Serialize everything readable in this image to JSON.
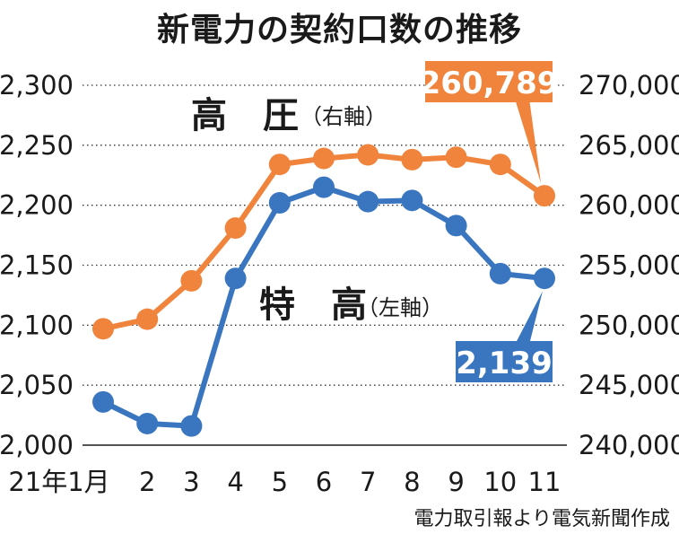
{
  "chart_data": {
    "type": "line",
    "title": "新電力の契約口数の推移",
    "source": "電力取引報より電気新聞作成",
    "x_labels": [
      "21年1月",
      "2",
      "3",
      "4",
      "5",
      "6",
      "7",
      "8",
      "9",
      "10",
      "11"
    ],
    "left_axis": {
      "range": [
        2000,
        2300
      ],
      "ticks": [
        "2,000",
        "2,050",
        "2,100",
        "2,150",
        "2,200",
        "2,250",
        "2,300"
      ]
    },
    "right_axis": {
      "range": [
        240000,
        270000
      ],
      "ticks": [
        "240,000",
        "245,000",
        "250,000",
        "255,000",
        "260,000",
        "265,000",
        "270,000"
      ]
    },
    "grid": true,
    "series": [
      {
        "name": "高　圧",
        "axis_note": "（右軸）",
        "axis": "right",
        "color": "#f0843c",
        "values": [
          249700,
          250500,
          253700,
          258100,
          263400,
          263900,
          264200,
          263800,
          264000,
          263400,
          260789
        ],
        "callout": "260,789"
      },
      {
        "name": "特　高",
        "axis_note": "（左軸）",
        "axis": "left",
        "color": "#3a76c0",
        "values": [
          2036,
          2018,
          2016,
          2139,
          2202,
          2215,
          2203,
          2204,
          2183,
          2143,
          2139
        ],
        "callout": "2,139"
      }
    ]
  }
}
